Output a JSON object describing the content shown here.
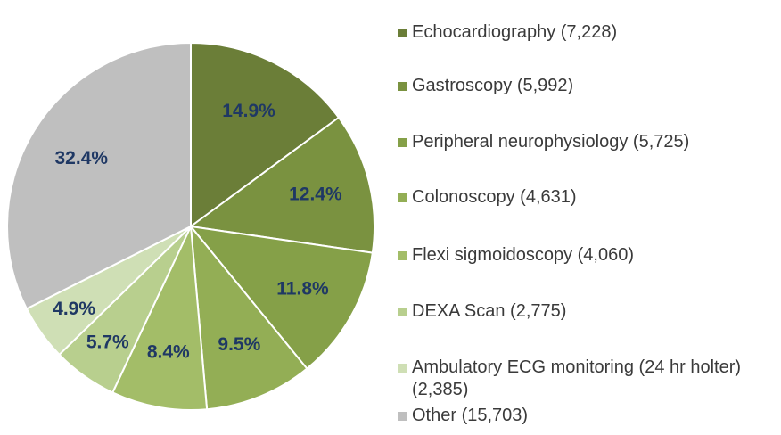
{
  "chart_data": {
    "type": "pie",
    "categories": [
      "Echocardiography (7,228)",
      "Gastroscopy (5,992)",
      "Peripheral neurophysiology (5,725)",
      "Colonoscopy (4,631)",
      "Flexi sigmoidoscopy (4,060)",
      "DEXA Scan (2,775)",
      "Ambulatory ECG monitoring (24 hr holter) (2,385)",
      "Other (15,703)"
    ],
    "values": [
      14.9,
      12.4,
      11.8,
      9.5,
      8.4,
      5.7,
      4.9,
      32.4
    ],
    "value_labels": [
      "14.9%",
      "12.4%",
      "11.8%",
      "9.5%",
      "8.4%",
      "5.7%",
      "4.9%",
      "32.4%"
    ],
    "colors": [
      "#6b7e38",
      "#7a9240",
      "#85a048",
      "#93ae55",
      "#a3bd68",
      "#b8cf8e",
      "#cfdfb5",
      "#bfbfbf"
    ],
    "legend": "right"
  }
}
